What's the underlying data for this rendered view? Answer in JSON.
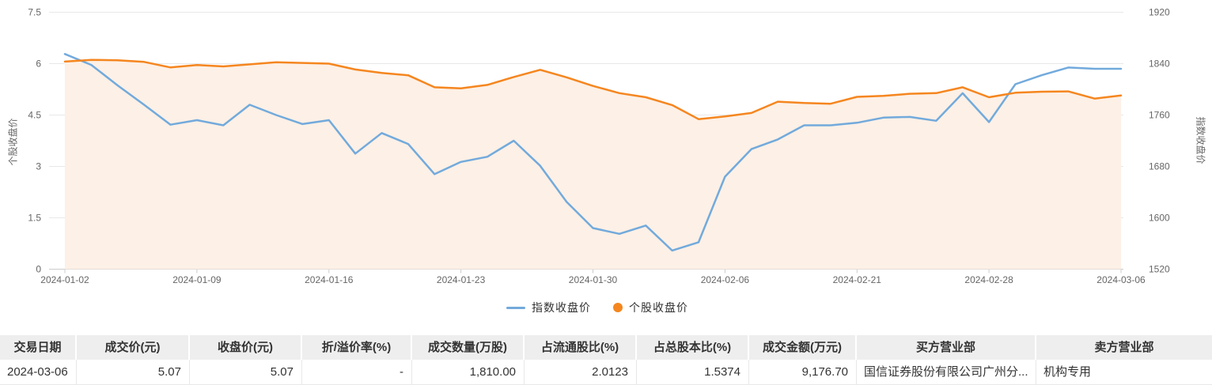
{
  "colors": {
    "index_line": "#72aadc",
    "stock_line": "#f5861f",
    "stock_area": "#fdf0e6",
    "grid_line": "#e8e8e8",
    "axis_line": "#cccccc",
    "axis_text": "#666666"
  },
  "chart_data": {
    "type": "line",
    "x": [
      "2024-01-02",
      "2024-01-03",
      "2024-01-04",
      "2024-01-05",
      "2024-01-08",
      "2024-01-09",
      "2024-01-10",
      "2024-01-11",
      "2024-01-12",
      "2024-01-15",
      "2024-01-16",
      "2024-01-17",
      "2024-01-18",
      "2024-01-19",
      "2024-01-22",
      "2024-01-23",
      "2024-01-24",
      "2024-01-25",
      "2024-01-26",
      "2024-01-29",
      "2024-01-30",
      "2024-01-31",
      "2024-02-01",
      "2024-02-02",
      "2024-02-05",
      "2024-02-06",
      "2024-02-07",
      "2024-02-08",
      "2024-02-19",
      "2024-02-20",
      "2024-02-21",
      "2024-02-22",
      "2024-02-23",
      "2024-02-26",
      "2024-02-27",
      "2024-02-28",
      "2024-02-29",
      "2024-03-01",
      "2024-03-04",
      "2024-03-05",
      "2024-03-06"
    ],
    "x_tick_labels": [
      "2024-01-02",
      "2024-01-09",
      "2024-01-16",
      "2024-01-23",
      "2024-01-30",
      "2024-02-06",
      "2024-02-21",
      "2024-02-28",
      "2024-03-06"
    ],
    "x_tick_indices": [
      0,
      5,
      10,
      15,
      20,
      25,
      30,
      35,
      40
    ],
    "series": [
      {
        "name": "指数收盘价",
        "axis": "right",
        "marker": "line",
        "values": [
          1855,
          1838,
          1806,
          1776,
          1745,
          1752,
          1744,
          1776,
          1760,
          1746,
          1752,
          1700,
          1732,
          1715,
          1668,
          1687,
          1695,
          1720,
          1681,
          1625,
          1584,
          1575,
          1588,
          1549,
          1562,
          1664,
          1707,
          1722,
          1744,
          1744,
          1748,
          1756,
          1757,
          1751,
          1794,
          1749,
          1808,
          1822,
          1834,
          1832,
          1832
        ]
      },
      {
        "name": "个股收盘价",
        "axis": "left",
        "marker": "circle",
        "area": true,
        "values": [
          6.06,
          6.11,
          6.1,
          6.05,
          5.89,
          5.96,
          5.92,
          5.98,
          6.04,
          6.02,
          6.0,
          5.83,
          5.73,
          5.66,
          5.31,
          5.28,
          5.38,
          5.61,
          5.82,
          5.6,
          5.35,
          5.14,
          5.02,
          4.79,
          4.38,
          4.46,
          4.56,
          4.89,
          4.85,
          4.83,
          5.03,
          5.06,
          5.12,
          5.14,
          5.31,
          5.02,
          5.15,
          5.18,
          5.19,
          4.98,
          5.07
        ]
      }
    ],
    "left_axis": {
      "name": "个股收盘价",
      "ylim": [
        0,
        7.5
      ],
      "ticks": [
        0,
        1.5,
        3,
        4.5,
        6,
        7.5
      ],
      "tick_labels": [
        "0",
        "1.5",
        "3",
        "4.5",
        "6",
        "7.5"
      ]
    },
    "right_axis": {
      "name": "指数收盘价",
      "ylim": [
        1520,
        1920
      ],
      "ticks": [
        1520,
        1600,
        1680,
        1760,
        1840,
        1920
      ],
      "tick_labels": [
        "1520",
        "1600",
        "1680",
        "1760",
        "1840",
        "1920"
      ]
    },
    "grid": true,
    "legend_position": "bottom"
  },
  "legend": {
    "index_label": "指数收盘价",
    "stock_label": "个股收盘价"
  },
  "table": {
    "columns": [
      {
        "label": "交易日期",
        "align": "al"
      },
      {
        "label": "成交价(元)",
        "align": "ar"
      },
      {
        "label": "收盘价(元)",
        "align": "ar"
      },
      {
        "label": "折/溢价率(%)",
        "align": "ar"
      },
      {
        "label": "成交数量(万股)",
        "align": "ar"
      },
      {
        "label": "占流通股比(%)",
        "align": "ar"
      },
      {
        "label": "占总股本比(%)",
        "align": "ar"
      },
      {
        "label": "成交金额(万元)",
        "align": "ar"
      },
      {
        "label": "买方营业部",
        "align": "al"
      },
      {
        "label": "卖方营业部",
        "align": "al"
      }
    ],
    "rows": [
      [
        "2024-03-06",
        "5.07",
        "5.07",
        "-",
        "1,810.00",
        "2.0123",
        "1.5374",
        "9,176.70",
        "国信证券股份有限公司广州分...",
        "机构专用"
      ]
    ]
  }
}
